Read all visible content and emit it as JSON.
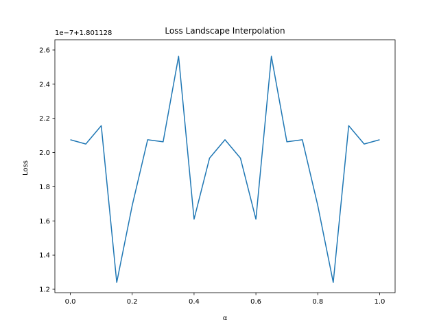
{
  "chart_data": {
    "type": "line",
    "title": "Loss Landscape Interpolation",
    "xlabel": "α",
    "ylabel": "Loss",
    "y_offset_text": "1e−7+1.801128",
    "y_units_note": "y values shown in tick units (×1e-7 relative to offset 1.801128)",
    "xlim": [
      -0.05,
      1.05
    ],
    "ylim": [
      1.18,
      2.66
    ],
    "xticks": [
      0.0,
      0.2,
      0.4,
      0.6,
      0.8,
      1.0
    ],
    "xtick_labels": [
      "0.0",
      "0.2",
      "0.4",
      "0.6",
      "0.8",
      "1.0"
    ],
    "yticks": [
      1.2,
      1.4,
      1.6,
      1.8,
      2.0,
      2.2,
      2.4,
      2.6
    ],
    "ytick_labels": [
      "1.2",
      "1.4",
      "1.6",
      "1.8",
      "2.0",
      "2.2",
      "2.4",
      "2.6"
    ],
    "grid": false,
    "legend": "none",
    "color": "#1f77b4",
    "series": [
      {
        "x": [
          0.0,
          0.05,
          0.1,
          0.15,
          0.2,
          0.25,
          0.3,
          0.35,
          0.4,
          0.45,
          0.5,
          0.55,
          0.6,
          0.65,
          0.7,
          0.75,
          0.8,
          0.85,
          0.9,
          0.95,
          1.0
        ],
        "y": [
          2.075,
          2.05,
          2.157,
          1.24,
          1.69,
          2.075,
          2.063,
          2.563,
          1.61,
          1.967,
          2.075,
          1.967,
          1.61,
          2.563,
          2.063,
          2.075,
          1.69,
          1.24,
          2.157,
          2.05,
          2.075
        ]
      }
    ]
  }
}
